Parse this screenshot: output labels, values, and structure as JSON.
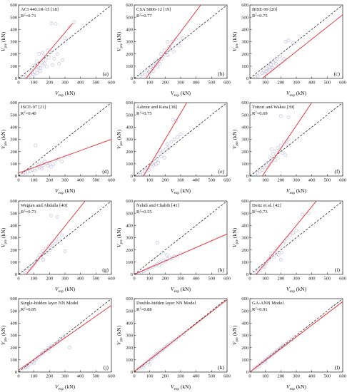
{
  "axes": {
    "xlabel_main": "V",
    "xlabel_sub": "exp",
    "ylabel_main": "V",
    "ylabel_sub": "pre",
    "unit": "(kN)",
    "xlim": [
      0,
      600
    ],
    "ylim": [
      0,
      600
    ],
    "ticks": [
      "0",
      "100",
      "200",
      "300",
      "400",
      "500",
      "600"
    ]
  },
  "colors": {
    "fit_line": "#e8262b",
    "ideal_line": "#222222",
    "points": "#b8b8d8"
  },
  "chart_data": [
    {
      "type": "scatter",
      "label": "(a)",
      "title": "ACI 440.1R-15 [18]",
      "r2_prefix": "R",
      "r2_sup": "2",
      "r2_value": "=0.71",
      "points": [
        [
          32,
          8
        ],
        [
          48,
          18
        ],
        [
          62,
          12
        ],
        [
          75,
          25
        ],
        [
          85,
          55
        ],
        [
          95,
          35
        ],
        [
          102,
          28
        ],
        [
          108,
          110
        ],
        [
          115,
          70
        ],
        [
          120,
          45
        ],
        [
          128,
          90
        ],
        [
          132,
          200
        ],
        [
          140,
          60
        ],
        [
          148,
          130
        ],
        [
          155,
          105
        ],
        [
          160,
          180
        ],
        [
          168,
          120
        ],
        [
          175,
          150
        ],
        [
          182,
          95
        ],
        [
          188,
          230
        ],
        [
          195,
          170
        ],
        [
          205,
          215
        ],
        [
          212,
          450
        ],
        [
          220,
          110
        ],
        [
          230,
          160
        ],
        [
          240,
          445
        ],
        [
          250,
          200
        ],
        [
          262,
          120
        ],
        [
          285,
          150
        ],
        [
          300,
          330
        ],
        [
          330,
          420
        ],
        [
          360,
          460
        ],
        [
          155,
          210
        ],
        [
          118,
          140
        ],
        [
          140,
          85
        ]
      ],
      "fit": [
        [
          50,
          0
        ],
        [
          350,
          450
        ]
      ]
    },
    {
      "type": "scatter",
      "label": "(b)",
      "title": "CSA S806-12 [19]",
      "r2_prefix": "R",
      "r2_sup": "2",
      "r2_value": "=0.77",
      "points": [
        [
          40,
          20
        ],
        [
          55,
          35
        ],
        [
          70,
          30
        ],
        [
          85,
          60
        ],
        [
          95,
          50
        ],
        [
          105,
          70
        ],
        [
          110,
          90
        ],
        [
          120,
          80
        ],
        [
          128,
          100
        ],
        [
          135,
          140
        ],
        [
          140,
          110
        ],
        [
          150,
          130
        ],
        [
          158,
          150
        ],
        [
          165,
          120
        ],
        [
          172,
          200
        ],
        [
          180,
          160
        ],
        [
          188,
          180
        ],
        [
          195,
          230
        ],
        [
          205,
          210
        ],
        [
          215,
          190
        ],
        [
          225,
          260
        ],
        [
          235,
          240
        ],
        [
          245,
          300
        ],
        [
          255,
          220
        ],
        [
          270,
          320
        ],
        [
          290,
          270
        ],
        [
          310,
          330
        ],
        [
          150,
          95
        ],
        [
          125,
          60
        ],
        [
          100,
          40
        ],
        [
          215,
          300
        ]
      ],
      "fit": [
        [
          75,
          0
        ],
        [
          430,
          600
        ]
      ]
    },
    {
      "type": "scatter",
      "label": "(c)",
      "title": "BISE-99 [20]",
      "r2_prefix": "R",
      "r2_sup": "2",
      "r2_value": "=0.75",
      "points": [
        [
          35,
          15
        ],
        [
          50,
          20
        ],
        [
          65,
          30
        ],
        [
          80,
          45
        ],
        [
          90,
          60
        ],
        [
          100,
          40
        ],
        [
          110,
          80
        ],
        [
          118,
          70
        ],
        [
          125,
          95
        ],
        [
          135,
          110
        ],
        [
          142,
          90
        ],
        [
          150,
          130
        ],
        [
          160,
          150
        ],
        [
          168,
          120
        ],
        [
          175,
          160
        ],
        [
          185,
          100
        ],
        [
          195,
          180
        ],
        [
          210,
          140
        ],
        [
          220,
          160
        ],
        [
          230,
          300
        ],
        [
          250,
          310
        ],
        [
          280,
          290
        ],
        [
          150,
          85
        ],
        [
          130,
          70
        ],
        [
          105,
          55
        ]
      ],
      "fit": [
        [
          80,
          0
        ],
        [
          600,
          520
        ]
      ]
    },
    {
      "type": "scatter",
      "label": "(d)",
      "title": "JSCE-97 [21]",
      "r2_prefix": "R",
      "r2_sup": "2",
      "r2_value": "=0.40",
      "points": [
        [
          30,
          20
        ],
        [
          45,
          25
        ],
        [
          60,
          35
        ],
        [
          75,
          40
        ],
        [
          90,
          50
        ],
        [
          105,
          45
        ],
        [
          120,
          60
        ],
        [
          130,
          80
        ],
        [
          140,
          70
        ],
        [
          150,
          100
        ],
        [
          160,
          90
        ],
        [
          170,
          120
        ],
        [
          180,
          105
        ],
        [
          190,
          85
        ],
        [
          200,
          110
        ],
        [
          210,
          75
        ],
        [
          225,
          95
        ],
        [
          240,
          130
        ],
        [
          260,
          140
        ],
        [
          280,
          120
        ],
        [
          300,
          160
        ],
        [
          330,
          170
        ],
        [
          110,
          250
        ],
        [
          150,
          60
        ],
        [
          125,
          95
        ]
      ],
      "fit": [
        [
          0,
          25
        ],
        [
          600,
          300
        ]
      ]
    },
    {
      "type": "scatter",
      "label": "(e)",
      "title": "Ashour and Kara [38]",
      "r2_prefix": "R",
      "r2_sup": "2",
      "r2_value": "=0.75",
      "points": [
        [
          40,
          10
        ],
        [
          55,
          20
        ],
        [
          70,
          40
        ],
        [
          85,
          60
        ],
        [
          95,
          50
        ],
        [
          105,
          80
        ],
        [
          115,
          100
        ],
        [
          125,
          90
        ],
        [
          135,
          120
        ],
        [
          145,
          140
        ],
        [
          155,
          110
        ],
        [
          165,
          180
        ],
        [
          175,
          160
        ],
        [
          185,
          200
        ],
        [
          195,
          150
        ],
        [
          205,
          220
        ],
        [
          215,
          260
        ],
        [
          225,
          240
        ],
        [
          240,
          280
        ],
        [
          260,
          300
        ],
        [
          280,
          320
        ],
        [
          300,
          340
        ],
        [
          250,
          460
        ],
        [
          270,
          450
        ],
        [
          170,
          210
        ],
        [
          140,
          95
        ]
      ],
      "fit": [
        [
          60,
          0
        ],
        [
          340,
          600
        ]
      ]
    },
    {
      "type": "scatter",
      "label": "(f)",
      "title": "Tottori and Wakui [39]",
      "r2_prefix": "R",
      "r2_sup": "2",
      "r2_value": "=0.69",
      "points": [
        [
          35,
          15
        ],
        [
          50,
          25
        ],
        [
          65,
          35
        ],
        [
          80,
          50
        ],
        [
          95,
          70
        ],
        [
          110,
          90
        ],
        [
          120,
          110
        ],
        [
          130,
          150
        ],
        [
          140,
          120
        ],
        [
          150,
          180
        ],
        [
          160,
          200
        ],
        [
          170,
          160
        ],
        [
          180,
          230
        ],
        [
          190,
          210
        ],
        [
          200,
          250
        ],
        [
          210,
          190
        ],
        [
          220,
          280
        ],
        [
          230,
          170
        ],
        [
          240,
          260
        ],
        [
          250,
          300
        ],
        [
          200,
          490
        ],
        [
          250,
          480
        ],
        [
          140,
          220
        ],
        [
          165,
          130
        ]
      ],
      "fit": [
        [
          80,
          0
        ],
        [
          400,
          600
        ]
      ]
    },
    {
      "type": "scatter",
      "label": "(g)",
      "title": "Wegian and Abdalla [40]",
      "r2_prefix": "R",
      "r2_sup": "2",
      "r2_value": "=0.73",
      "points": [
        [
          40,
          20
        ],
        [
          55,
          30
        ],
        [
          70,
          45
        ],
        [
          85,
          55
        ],
        [
          95,
          75
        ],
        [
          105,
          90
        ],
        [
          115,
          110
        ],
        [
          125,
          130
        ],
        [
          135,
          160
        ],
        [
          145,
          140
        ],
        [
          155,
          190
        ],
        [
          165,
          170
        ],
        [
          175,
          210
        ],
        [
          185,
          180
        ],
        [
          195,
          230
        ],
        [
          205,
          200
        ],
        [
          215,
          250
        ],
        [
          225,
          230
        ],
        [
          240,
          270
        ],
        [
          260,
          290
        ],
        [
          280,
          320
        ],
        [
          300,
          190
        ],
        [
          210,
          480
        ],
        [
          250,
          470
        ],
        [
          160,
          120
        ]
      ],
      "fit": [
        [
          50,
          0
        ],
        [
          430,
          600
        ]
      ]
    },
    {
      "type": "scatter",
      "label": "(h)",
      "title": "Nehdi and Chabib [41]",
      "r2_prefix": "R",
      "r2_sup": "2",
      "r2_value": "=0.55",
      "points": [
        [
          30,
          10
        ],
        [
          45,
          15
        ],
        [
          60,
          25
        ],
        [
          75,
          35
        ],
        [
          90,
          45
        ],
        [
          105,
          55
        ],
        [
          120,
          60
        ],
        [
          135,
          75
        ],
        [
          150,
          85
        ],
        [
          160,
          70
        ],
        [
          170,
          100
        ],
        [
          180,
          90
        ],
        [
          190,
          115
        ],
        [
          200,
          105
        ],
        [
          215,
          125
        ],
        [
          230,
          140
        ],
        [
          245,
          130
        ],
        [
          260,
          150
        ],
        [
          280,
          145
        ],
        [
          300,
          170
        ],
        [
          150,
          260
        ],
        [
          180,
          180
        ],
        [
          210,
          160
        ]
      ],
      "fit": [
        [
          0,
          0
        ],
        [
          600,
          330
        ]
      ]
    },
    {
      "type": "scatter",
      "label": "(i)",
      "title": "Deitz et al. [42]",
      "r2_prefix": "R",
      "r2_sup": "2",
      "r2_value": "=0.73",
      "points": [
        [
          40,
          20
        ],
        [
          55,
          35
        ],
        [
          70,
          50
        ],
        [
          85,
          65
        ],
        [
          95,
          60
        ],
        [
          105,
          90
        ],
        [
          115,
          110
        ],
        [
          125,
          130
        ],
        [
          135,
          150
        ],
        [
          145,
          170
        ],
        [
          155,
          140
        ],
        [
          165,
          190
        ],
        [
          175,
          210
        ],
        [
          185,
          160
        ],
        [
          195,
          230
        ],
        [
          205,
          180
        ],
        [
          215,
          250
        ],
        [
          225,
          270
        ],
        [
          240,
          300
        ],
        [
          260,
          320
        ],
        [
          280,
          340
        ],
        [
          300,
          360
        ],
        [
          340,
          490
        ],
        [
          380,
          500
        ],
        [
          200,
          120
        ]
      ],
      "fit": [
        [
          40,
          0
        ],
        [
          430,
          600
        ]
      ]
    },
    {
      "type": "scatter",
      "label": "(j)",
      "title": "Single-hidden layer NN Model",
      "r2_prefix": "R",
      "r2_sup": "2",
      "r2_value": "=0.85",
      "points": [
        [
          30,
          30
        ],
        [
          45,
          40
        ],
        [
          60,
          55
        ],
        [
          75,
          65
        ],
        [
          90,
          80
        ],
        [
          100,
          95
        ],
        [
          110,
          100
        ],
        [
          120,
          115
        ],
        [
          130,
          125
        ],
        [
          140,
          140
        ],
        [
          150,
          150
        ],
        [
          160,
          155
        ],
        [
          170,
          170
        ],
        [
          180,
          175
        ],
        [
          190,
          195
        ],
        [
          200,
          190
        ],
        [
          210,
          215
        ],
        [
          220,
          210
        ],
        [
          235,
          230
        ],
        [
          250,
          240
        ],
        [
          270,
          270
        ],
        [
          290,
          290
        ],
        [
          330,
          200
        ],
        [
          100,
          70
        ],
        [
          60,
          40
        ]
      ],
      "fit": [
        [
          0,
          15
        ],
        [
          600,
          545
        ]
      ]
    },
    {
      "type": "scatter",
      "label": "(k)",
      "title": "Double-hidden layer NN Model",
      "r2_prefix": "R",
      "r2_sup": "2",
      "r2_value": "=0.88",
      "points": [
        [
          30,
          25
        ],
        [
          45,
          45
        ],
        [
          60,
          55
        ],
        [
          75,
          70
        ],
        [
          90,
          85
        ],
        [
          100,
          100
        ],
        [
          110,
          105
        ],
        [
          120,
          120
        ],
        [
          130,
          130
        ],
        [
          140,
          145
        ],
        [
          150,
          150
        ],
        [
          160,
          160
        ],
        [
          170,
          175
        ],
        [
          180,
          180
        ],
        [
          190,
          190
        ],
        [
          200,
          205
        ],
        [
          210,
          210
        ],
        [
          220,
          225
        ],
        [
          235,
          235
        ],
        [
          250,
          250
        ],
        [
          270,
          265
        ],
        [
          290,
          290
        ],
        [
          320,
          310
        ],
        [
          100,
          60
        ],
        [
          60,
          35
        ]
      ],
      "fit": [
        [
          0,
          5
        ],
        [
          600,
          590
        ]
      ]
    },
    {
      "type": "scatter",
      "label": "(l)",
      "title": "GA-ANN Model",
      "r2_prefix": "R",
      "r2_sup": "2",
      "r2_value": "=0.91",
      "points": [
        [
          30,
          28
        ],
        [
          45,
          40
        ],
        [
          60,
          58
        ],
        [
          75,
          72
        ],
        [
          90,
          88
        ],
        [
          100,
          98
        ],
        [
          110,
          108
        ],
        [
          120,
          118
        ],
        [
          130,
          130
        ],
        [
          140,
          138
        ],
        [
          150,
          150
        ],
        [
          160,
          158
        ],
        [
          170,
          168
        ],
        [
          180,
          180
        ],
        [
          190,
          188
        ],
        [
          200,
          200
        ],
        [
          210,
          208
        ],
        [
          220,
          218
        ],
        [
          235,
          232
        ],
        [
          250,
          248
        ],
        [
          270,
          268
        ],
        [
          290,
          290
        ],
        [
          320,
          315
        ],
        [
          100,
          80
        ],
        [
          60,
          45
        ]
      ],
      "fit": [
        [
          0,
          0
        ],
        [
          600,
          575
        ]
      ]
    }
  ]
}
